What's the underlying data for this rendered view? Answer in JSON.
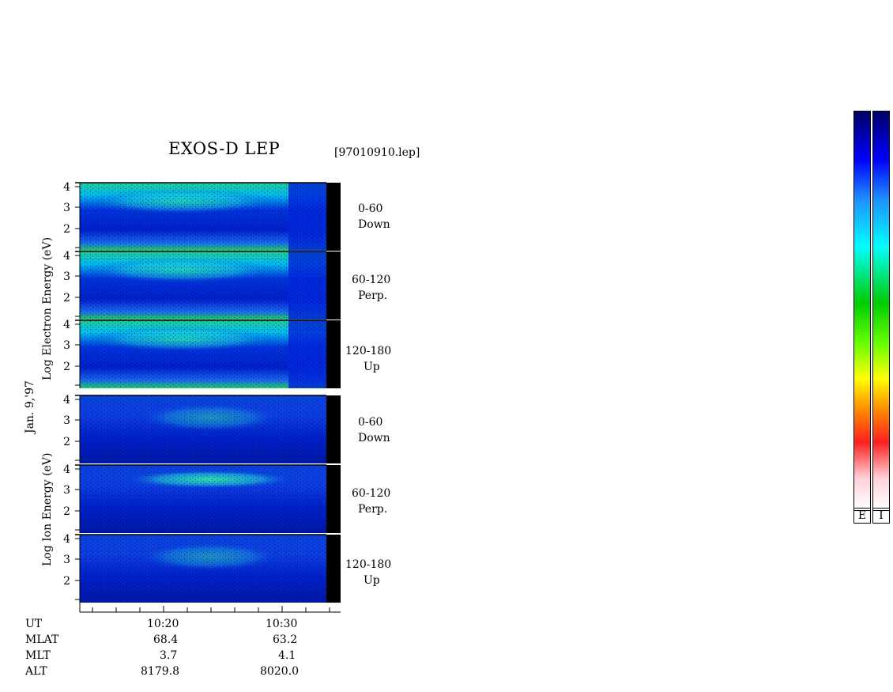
{
  "title": "EXOS-D LEP",
  "file_label": "[97010910.lep]",
  "date_label": "Jan. 9,'97",
  "colorbar": {
    "left_label": "E",
    "right_label": "I"
  },
  "chart_data": {
    "type": "heatmap",
    "x_axis": {
      "ticks": [
        "10:20",
        "10:30"
      ]
    },
    "groups": [
      {
        "ylabel": "Log  Electron  Energy (eV)",
        "panels": [
          {
            "label": "0-60",
            "sublabel": "Down",
            "yticks": [
              "4",
              "3",
              "2"
            ]
          },
          {
            "label": "60-120",
            "sublabel": "Perp.",
            "yticks": [
              "4",
              "3",
              "2"
            ]
          },
          {
            "label": "120-180",
            "sublabel": "Up",
            "yticks": [
              "4",
              "3",
              "2"
            ]
          }
        ]
      },
      {
        "ylabel": "Log  Ion  Energy (eV)",
        "panels": [
          {
            "label": "0-60",
            "sublabel": "Down",
            "yticks": [
              "4",
              "3",
              "2"
            ]
          },
          {
            "label": "60-120",
            "sublabel": "Perp.",
            "yticks": [
              "4",
              "3",
              "2"
            ]
          },
          {
            "label": "120-180",
            "sublabel": "Up",
            "yticks": [
              "4",
              "3",
              "2"
            ]
          }
        ]
      }
    ],
    "ephemeris": [
      {
        "name": "UT",
        "values": [
          "10:20",
          "10:30"
        ]
      },
      {
        "name": "MLAT",
        "values": [
          "68.4",
          "63.2"
        ]
      },
      {
        "name": "MLT",
        "values": [
          "3.7",
          "4.1"
        ]
      },
      {
        "name": "ALT",
        "values": [
          "8179.8",
          "8020.0"
        ]
      }
    ]
  }
}
